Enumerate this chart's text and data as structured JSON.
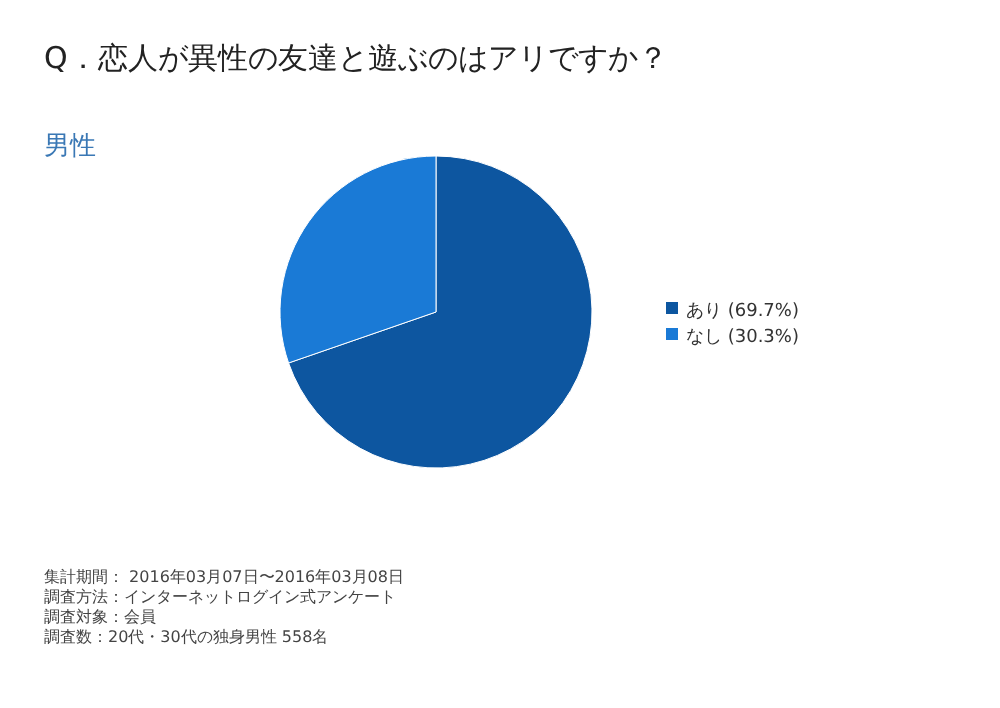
{
  "chart_data": {
    "type": "pie",
    "title": "Q．恋人が異性の友達と遊ぶのはアリですか？",
    "subtitle": "男性",
    "categories": [
      "あり (69.7%)",
      "なし (30.3%)"
    ],
    "values": [
      69.7,
      30.3
    ],
    "colors": [
      "#0d56a0",
      "#1a7ad6"
    ],
    "legend": "right",
    "annotations": [
      "集計期間： 2016年03月07日〜2016年03月08日",
      "調査方法：インターネットログイン式アンケート",
      "調査対象：会員",
      "調査数：20代・30代の独身男性 558名"
    ]
  }
}
